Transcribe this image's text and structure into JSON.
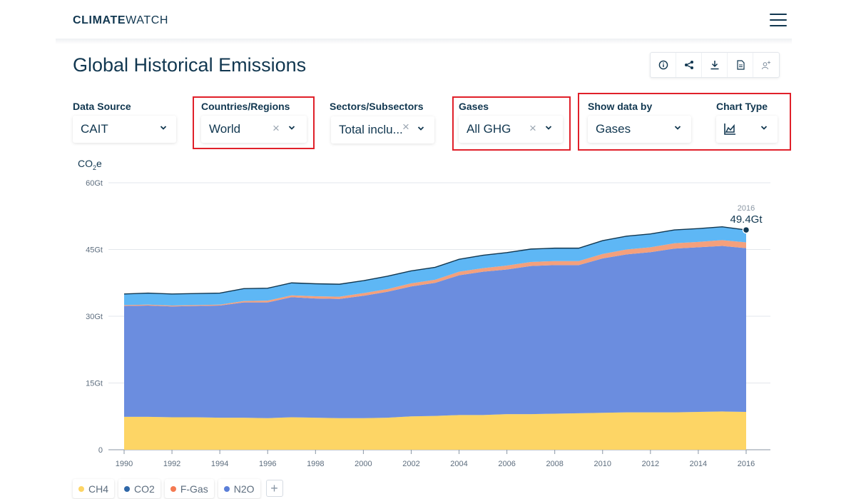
{
  "header": {
    "logo_bold": "CLIMATE",
    "logo_light": "WATCH"
  },
  "page": {
    "title": "Global Historical Emissions"
  },
  "actions": [
    "info-icon",
    "share-icon",
    "download-icon",
    "pdf-icon",
    "add-user-icon"
  ],
  "filters": {
    "data_source": {
      "label": "Data Source",
      "value": "CAIT"
    },
    "countries": {
      "label": "Countries/Regions",
      "value": "World"
    },
    "sectors": {
      "label": "Sectors/Subsectors",
      "value": "Total inclu..."
    },
    "gases": {
      "label": "Gases",
      "value": "All GHG"
    },
    "show_by": {
      "label": "Show data by",
      "value": "Gases"
    },
    "chart_type": {
      "label": "Chart Type",
      "icon": "area-chart-icon"
    }
  },
  "clear_glyph": "×",
  "colors": {
    "CH4": "#fdd565",
    "CO2": "#6b8ddf",
    "F-Gas": "#f4a07c",
    "N2O": "#5eb7f5",
    "highlight": "#e0202a"
  },
  "chart_data": {
    "type": "area",
    "stacked": true,
    "y_unit_prefix": "CO",
    "y_unit_sub": "2",
    "y_unit_suffix": "e",
    "ylim": [
      0,
      60
    ],
    "yticks": [
      "0",
      "15Gt",
      "30Gt",
      "45Gt",
      "60Gt"
    ],
    "x": [
      1990,
      1991,
      1992,
      1993,
      1994,
      1995,
      1996,
      1997,
      1998,
      1999,
      2000,
      2001,
      2002,
      2003,
      2004,
      2005,
      2006,
      2007,
      2008,
      2009,
      2010,
      2011,
      2012,
      2013,
      2014,
      2015,
      2016
    ],
    "series": [
      {
        "name": "CH4",
        "values": [
          7.4,
          7.4,
          7.3,
          7.3,
          7.2,
          7.2,
          7.1,
          7.3,
          7.2,
          7.1,
          7.1,
          7.2,
          7.5,
          7.6,
          7.8,
          7.8,
          8.0,
          8.0,
          8.1,
          8.2,
          8.3,
          8.4,
          8.4,
          8.4,
          8.5,
          8.6,
          8.5
        ]
      },
      {
        "name": "CO2",
        "values": [
          24.9,
          25.0,
          24.9,
          25.0,
          25.2,
          25.9,
          26.0,
          27.0,
          26.8,
          26.8,
          27.5,
          28.3,
          29.2,
          29.9,
          31.4,
          32.2,
          32.5,
          33.3,
          33.4,
          33.3,
          34.7,
          35.5,
          36.0,
          36.8,
          37.0,
          37.2,
          36.8
        ]
      },
      {
        "name": "F-Gas",
        "values": [
          0.2,
          0.2,
          0.2,
          0.2,
          0.2,
          0.3,
          0.4,
          0.4,
          0.5,
          0.5,
          0.6,
          0.6,
          0.7,
          0.7,
          0.8,
          0.8,
          0.9,
          0.9,
          0.9,
          0.9,
          1.0,
          1.1,
          1.1,
          1.2,
          1.2,
          1.3,
          1.3
        ]
      },
      {
        "name": "N2O",
        "values": [
          2.5,
          2.6,
          2.6,
          2.6,
          2.6,
          2.8,
          2.8,
          2.8,
          2.8,
          2.8,
          2.8,
          2.9,
          2.8,
          2.8,
          2.8,
          2.9,
          2.9,
          2.9,
          2.9,
          2.9,
          3.0,
          3.0,
          3.0,
          3.0,
          3.0,
          3.0,
          2.8
        ]
      }
    ],
    "total_2016": 49.4,
    "annotation": {
      "year": "2016",
      "value": "49.4Gt"
    },
    "xticks": [
      "1990",
      "1992",
      "1994",
      "1996",
      "1998",
      "2000",
      "2002",
      "2004",
      "2006",
      "2008",
      "2010",
      "2012",
      "2014",
      "2016"
    ],
    "legend": [
      "CH4",
      "CO2",
      "F-Gas",
      "N2O"
    ],
    "legend_placement": "bottom-left",
    "grid": true
  },
  "legend_add_glyph": "+"
}
